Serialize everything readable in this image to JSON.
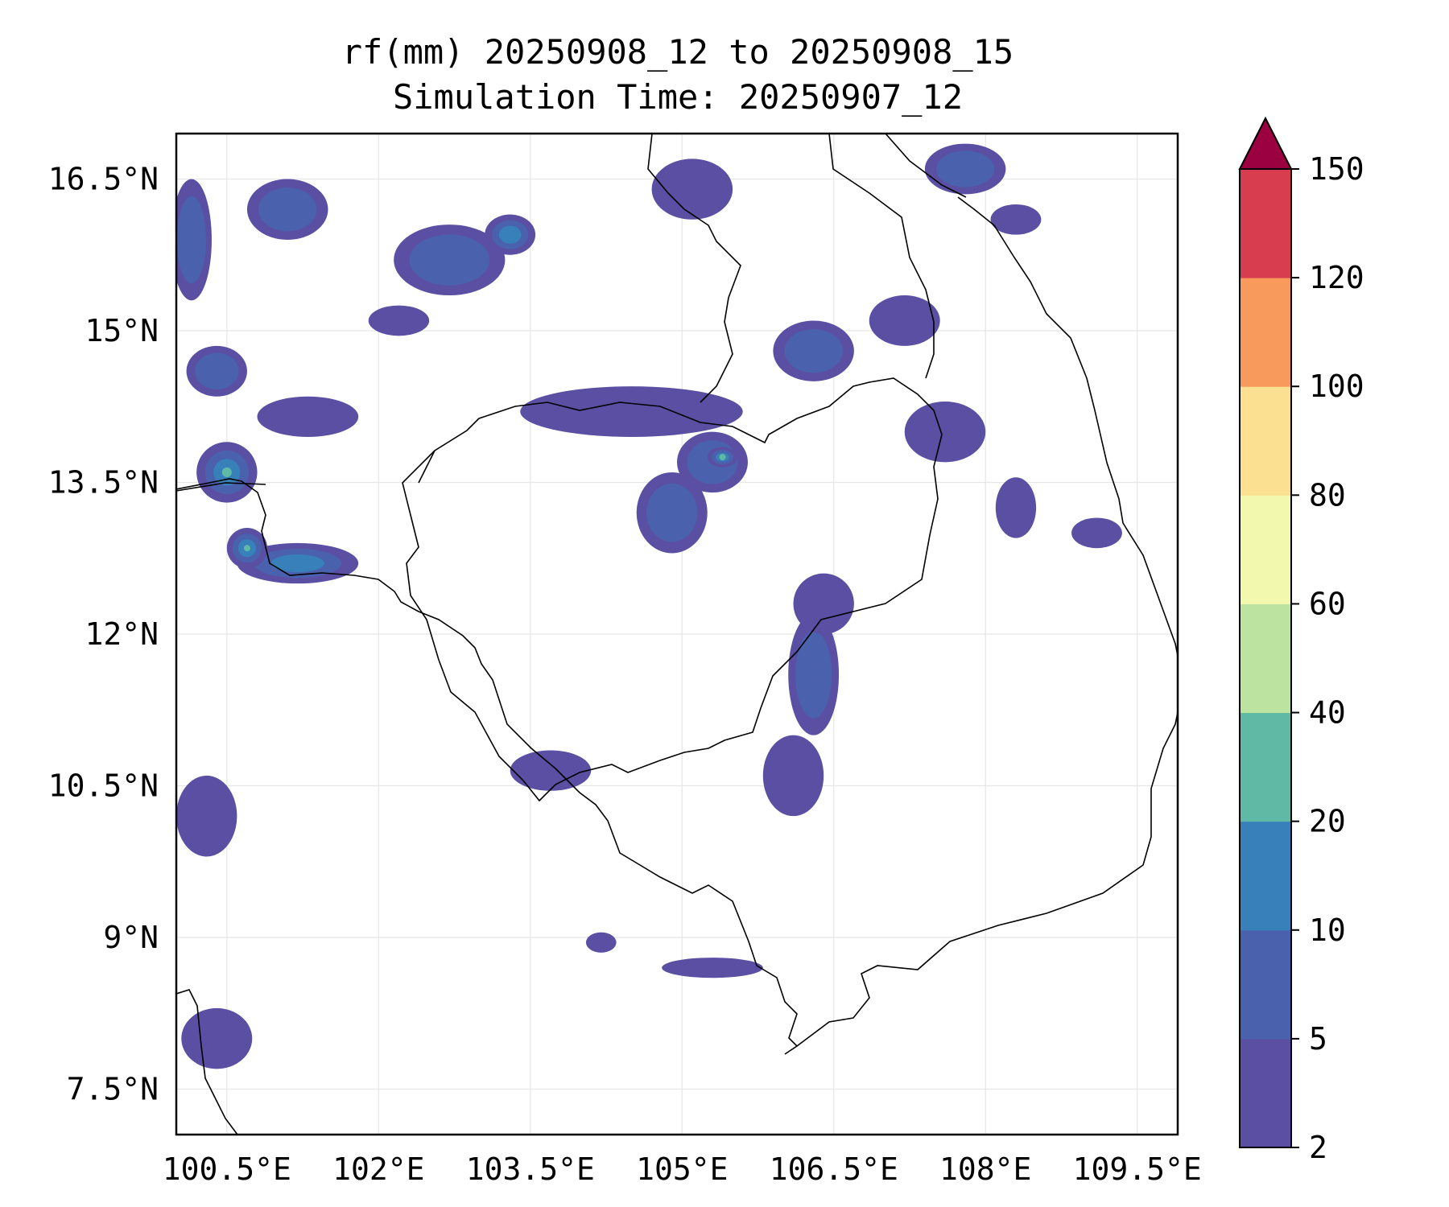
{
  "title": {
    "line1": "rf(mm) 20250908_12 to 20250908_15",
    "line2": "Simulation Time: 20250907_12"
  },
  "map": {
    "lon_range": [
      100.0,
      109.9
    ],
    "lat_range": [
      7.05,
      16.95
    ],
    "lon_ticks": [
      {
        "value": 100.5,
        "label": "100.5°E"
      },
      {
        "value": 102.0,
        "label": "102°E"
      },
      {
        "value": 103.5,
        "label": "103.5°E"
      },
      {
        "value": 105.0,
        "label": "105°E"
      },
      {
        "value": 106.5,
        "label": "106.5°E"
      },
      {
        "value": 108.0,
        "label": "108°E"
      },
      {
        "value": 109.5,
        "label": "109.5°E"
      }
    ],
    "lat_ticks": [
      {
        "value": 16.5,
        "label": "16.5°N"
      },
      {
        "value": 15.0,
        "label": "15°N"
      },
      {
        "value": 13.5,
        "label": "13.5°N"
      },
      {
        "value": 12.0,
        "label": "12°N"
      },
      {
        "value": 10.5,
        "label": "10.5°N"
      },
      {
        "value": 9.0,
        "label": "9°N"
      },
      {
        "value": 7.5,
        "label": "7.5°N"
      }
    ],
    "grid": true,
    "coastline_color": "#000000",
    "rain_cells": [
      {
        "lon": 102.7,
        "lat": 15.7,
        "rx": 0.55,
        "ry": 0.35,
        "level": 1
      },
      {
        "lon": 103.3,
        "lat": 15.95,
        "rx": 0.25,
        "ry": 0.2,
        "level": 2
      },
      {
        "lon": 101.1,
        "lat": 16.2,
        "rx": 0.4,
        "ry": 0.3,
        "level": 1
      },
      {
        "lon": 100.15,
        "lat": 15.9,
        "rx": 0.2,
        "ry": 0.6,
        "level": 1
      },
      {
        "lon": 102.2,
        "lat": 15.1,
        "rx": 0.3,
        "ry": 0.15,
        "level": 0
      },
      {
        "lon": 100.4,
        "lat": 14.6,
        "rx": 0.3,
        "ry": 0.25,
        "level": 1
      },
      {
        "lon": 101.3,
        "lat": 14.15,
        "rx": 0.5,
        "ry": 0.2,
        "level": 0
      },
      {
        "lon": 100.5,
        "lat": 13.6,
        "rx": 0.3,
        "ry": 0.3,
        "level": 3
      },
      {
        "lon": 101.2,
        "lat": 12.7,
        "rx": 0.6,
        "ry": 0.2,
        "level": 2
      },
      {
        "lon": 100.7,
        "lat": 12.85,
        "rx": 0.2,
        "ry": 0.2,
        "level": 3
      },
      {
        "lon": 104.5,
        "lat": 14.2,
        "rx": 1.1,
        "ry": 0.25,
        "level": 0
      },
      {
        "lon": 105.3,
        "lat": 13.7,
        "rx": 0.35,
        "ry": 0.3,
        "level": 1
      },
      {
        "lon": 105.4,
        "lat": 13.75,
        "rx": 0.15,
        "ry": 0.1,
        "level": 3
      },
      {
        "lon": 104.9,
        "lat": 13.2,
        "rx": 0.35,
        "ry": 0.4,
        "level": 1
      },
      {
        "lon": 105.1,
        "lat": 16.4,
        "rx": 0.4,
        "ry": 0.3,
        "level": 0
      },
      {
        "lon": 106.3,
        "lat": 14.8,
        "rx": 0.4,
        "ry": 0.3,
        "level": 1
      },
      {
        "lon": 107.2,
        "lat": 15.1,
        "rx": 0.35,
        "ry": 0.25,
        "level": 0
      },
      {
        "lon": 107.8,
        "lat": 16.6,
        "rx": 0.4,
        "ry": 0.25,
        "level": 1
      },
      {
        "lon": 108.3,
        "lat": 13.25,
        "rx": 0.2,
        "ry": 0.3,
        "level": 0
      },
      {
        "lon": 109.1,
        "lat": 13.0,
        "rx": 0.25,
        "ry": 0.15,
        "level": 0
      },
      {
        "lon": 107.6,
        "lat": 14.0,
        "rx": 0.4,
        "ry": 0.3,
        "level": 0
      },
      {
        "lon": 106.3,
        "lat": 11.6,
        "rx": 0.25,
        "ry": 0.6,
        "level": 1
      },
      {
        "lon": 106.4,
        "lat": 12.3,
        "rx": 0.3,
        "ry": 0.3,
        "level": 0
      },
      {
        "lon": 106.1,
        "lat": 10.6,
        "rx": 0.3,
        "ry": 0.4,
        "level": 0
      },
      {
        "lon": 105.3,
        "lat": 8.7,
        "rx": 0.5,
        "ry": 0.1,
        "level": 0
      },
      {
        "lon": 103.7,
        "lat": 10.65,
        "rx": 0.4,
        "ry": 0.2,
        "level": 0
      },
      {
        "lon": 100.3,
        "lat": 10.2,
        "rx": 0.3,
        "ry": 0.4,
        "level": 0
      },
      {
        "lon": 100.4,
        "lat": 8.0,
        "rx": 0.35,
        "ry": 0.3,
        "level": 0
      },
      {
        "lon": 104.2,
        "lat": 8.95,
        "rx": 0.15,
        "ry": 0.1,
        "level": 0
      },
      {
        "lon": 108.3,
        "lat": 16.1,
        "rx": 0.25,
        "ry": 0.15,
        "level": 0
      }
    ]
  },
  "colorbar": {
    "levels": [
      2,
      5,
      10,
      20,
      40,
      60,
      80,
      100,
      120,
      150
    ],
    "tick_labels": [
      "2",
      "5",
      "10",
      "20",
      "40",
      "60",
      "80",
      "100",
      "120",
      "150"
    ],
    "colors": [
      "#5a4fa2",
      "#4a61ae",
      "#3880ba",
      "#5fb9a5",
      "#bde3a0",
      "#f2f8ad",
      "#fbe092",
      "#f89a5c",
      "#d83c4f"
    ],
    "extend_color": "#9b0040"
  }
}
